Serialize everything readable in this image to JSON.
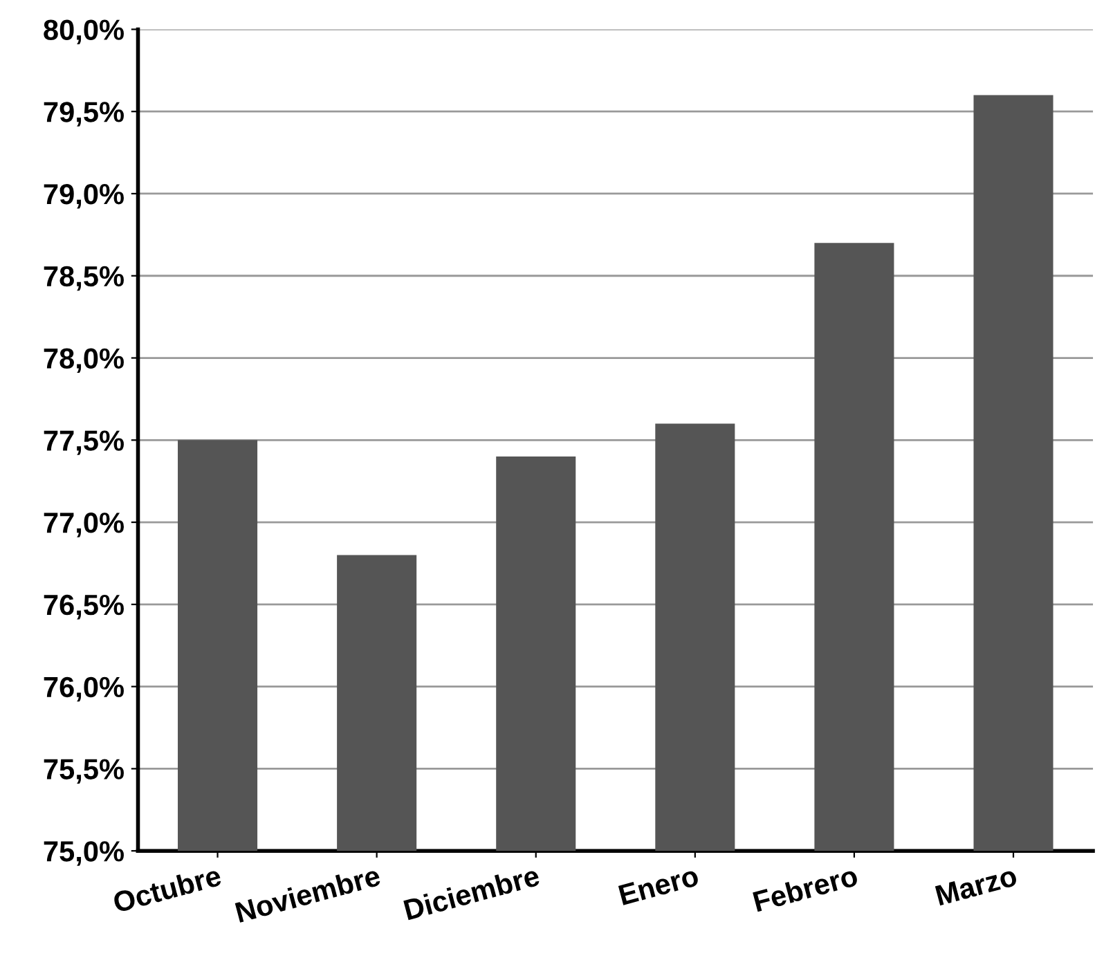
{
  "chart_data": {
    "type": "bar",
    "categories": [
      "Octubre",
      "Noviembre",
      "Diciembre",
      "Enero",
      "Febrero",
      "Marzo"
    ],
    "values": [
      77.5,
      76.8,
      77.4,
      77.6,
      78.7,
      79.6
    ],
    "color": "#555555",
    "ylim": [
      75,
      80
    ],
    "yticks": [
      {
        "value": 75,
        "label": "75,0%"
      },
      {
        "value": 75.5,
        "label": "75,5%"
      },
      {
        "value": 76,
        "label": "76,0%"
      },
      {
        "value": 76.5,
        "label": "76,5%"
      },
      {
        "value": 77,
        "label": "77,0%"
      },
      {
        "value": 77.5,
        "label": "77,5%"
      },
      {
        "value": 78,
        "label": "78,0%"
      },
      {
        "value": 78.5,
        "label": "78,5%"
      },
      {
        "value": 79,
        "label": "79,0%"
      },
      {
        "value": 79.5,
        "label": "79,5%"
      },
      {
        "value": 80,
        "label": "80,0%"
      }
    ],
    "grid": "y"
  }
}
